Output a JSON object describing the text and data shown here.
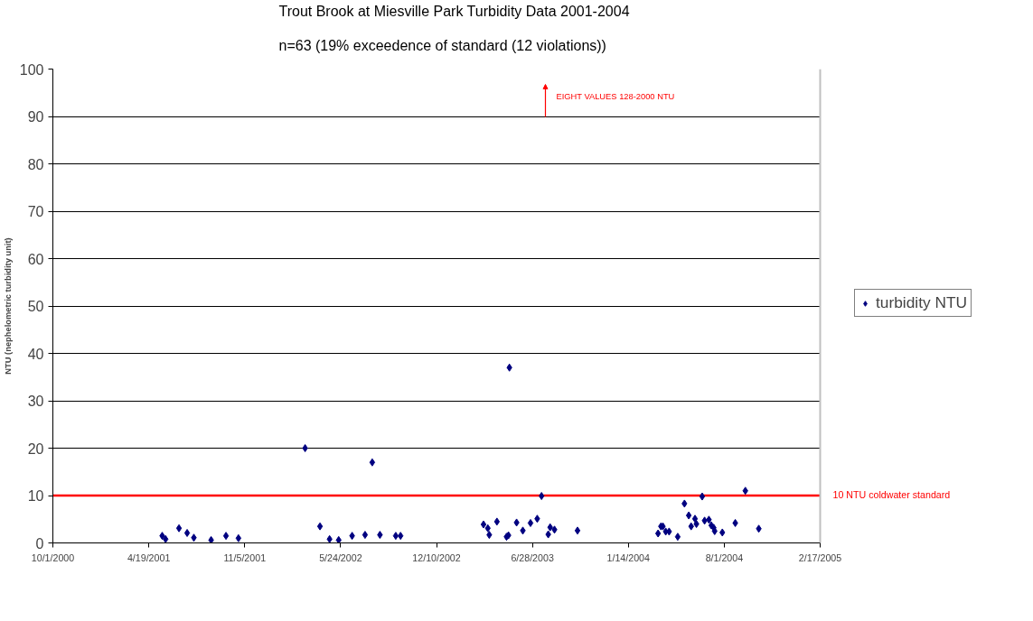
{
  "chart_data": {
    "type": "scatter",
    "title": "Trout Brook at Miesville Park Turbidity Data 2001-2004",
    "subtitle": "n=63 (19% exceedence of standard (12 violations))",
    "ylabel": "NTU (nephelometric turbidity unit)",
    "x": [
      "2001-05-17",
      "2001-05-24",
      "2001-06-21",
      "2001-07-08",
      "2001-07-22",
      "2001-08-27",
      "2001-09-27",
      "2001-10-23",
      "2002-03-11",
      "2002-04-11",
      "2002-05-01",
      "2002-05-20",
      "2002-06-17",
      "2002-07-14",
      "2002-07-29",
      "2002-08-14",
      "2002-09-16",
      "2002-09-26",
      "2003-03-18",
      "2003-03-27",
      "2003-03-30",
      "2003-04-15",
      "2003-05-05",
      "2003-05-09",
      "2003-05-11",
      "2003-05-26",
      "2003-06-08",
      "2003-06-24",
      "2003-07-08",
      "2003-07-17",
      "2003-07-31",
      "2003-08-04",
      "2003-08-13",
      "2003-09-30",
      "2004-03-16",
      "2004-03-22",
      "2004-03-26",
      "2004-04-01",
      "2004-04-08",
      "2004-04-26",
      "2004-05-10",
      "2004-05-19",
      "2004-05-24",
      "2004-06-01",
      "2004-06-04",
      "2004-06-16",
      "2004-06-21",
      "2004-06-30",
      "2004-07-05",
      "2004-07-10",
      "2004-07-12",
      "2004-07-28",
      "2004-08-24",
      "2004-09-14",
      "2004-10-12"
    ],
    "series": [
      {
        "name": "turbidity NTU",
        "color": "#000080",
        "values": [
          1.5,
          0.8,
          3.1,
          2.1,
          1.1,
          0.6,
          1.5,
          1.0,
          20,
          3.5,
          0.8,
          0.6,
          1.5,
          1.7,
          17,
          1.7,
          1.5,
          1.5,
          3.9,
          3.1,
          1.7,
          4.5,
          1.3,
          1.6,
          37,
          4.3,
          2.6,
          4.2,
          5.1,
          9.9,
          1.8,
          3.3,
          2.8,
          2.6,
          2.0,
          3.5,
          3.5,
          2.4,
          2.4,
          1.3,
          8.3,
          5.8,
          3.5,
          5.1,
          4.0,
          9.8,
          4.7,
          4.9,
          3.7,
          3.2,
          2.5,
          2.2,
          4.2,
          11,
          3.0
        ]
      }
    ],
    "marker": "diamond",
    "xlim": [
      "2000-10-01",
      "2005-02-17"
    ],
    "xticks": [
      {
        "value": "2000-10-01",
        "label": "10/1/2000"
      },
      {
        "value": "2001-04-19",
        "label": "4/19/2001"
      },
      {
        "value": "2001-11-05",
        "label": "11/5/2001"
      },
      {
        "value": "2002-05-24",
        "label": "5/24/2002"
      },
      {
        "value": "2002-12-10",
        "label": "12/10/2002"
      },
      {
        "value": "2003-06-28",
        "label": "6/28/2003"
      },
      {
        "value": "2004-01-14",
        "label": "1/14/2004"
      },
      {
        "value": "2004-08-01",
        "label": "8/1/2004"
      },
      {
        "value": "2005-02-17",
        "label": "2/17/2005"
      }
    ],
    "ylim": [
      0,
      100
    ],
    "yticks": [
      0,
      10,
      20,
      30,
      40,
      50,
      60,
      70,
      80,
      90,
      100
    ],
    "grid": "y",
    "legend": "right",
    "ref_lines": [
      {
        "axis": "y",
        "value": 10,
        "label": "10 NTU coldwater standard",
        "color": "#ff0000"
      }
    ],
    "annotations": [
      "EIGHT VALUES 128-2000 NTU"
    ]
  }
}
